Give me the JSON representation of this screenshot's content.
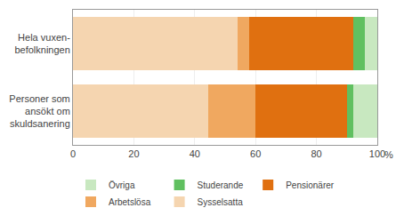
{
  "chart_data": {
    "type": "bar",
    "orientation": "horizontal",
    "stacked": true,
    "categories": [
      "Hela vuxen-\nbefolkningen",
      "Personer som\nansökt om\nskuldsanering"
    ],
    "series": [
      {
        "name": "Sysselsatta",
        "color": "#f5d5b0",
        "values": [
          54.0,
          44.4
        ]
      },
      {
        "name": "Arbetslösa",
        "color": "#f0a860",
        "values": [
          4.0,
          15.6
        ]
      },
      {
        "name": "Pensionärer",
        "color": "#e07010",
        "values": [
          34.0,
          30.0
        ]
      },
      {
        "name": "Studerande",
        "color": "#60c060",
        "values": [
          4.0,
          2.0
        ]
      },
      {
        "name": "Övriga",
        "color": "#c8e8c0",
        "values": [
          4.0,
          8.0
        ]
      }
    ],
    "xlabel": "%",
    "xlim": [
      0,
      100
    ],
    "xticks": [
      0,
      20,
      40,
      60,
      80,
      100
    ],
    "grid": true,
    "legend": "bottom"
  }
}
